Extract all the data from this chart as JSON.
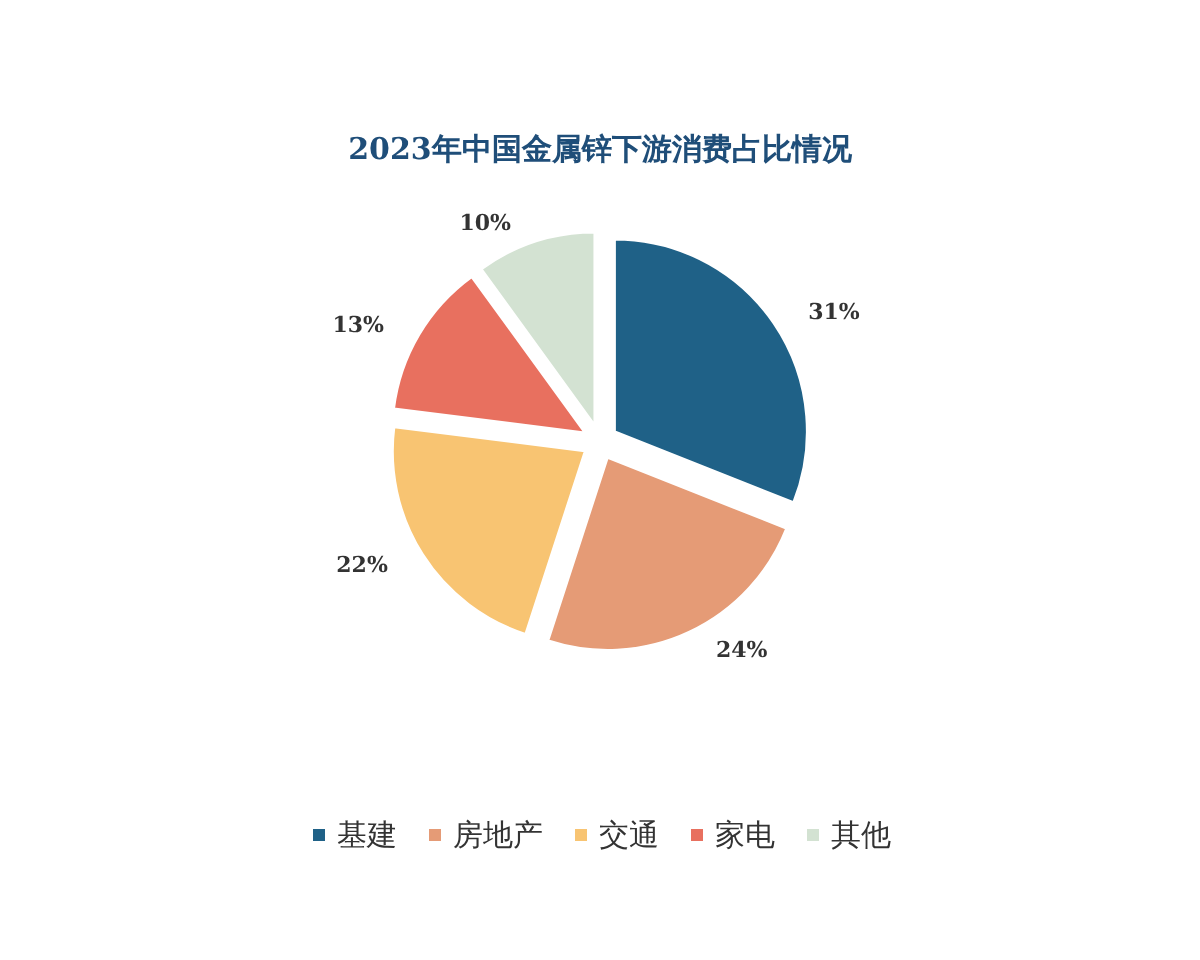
{
  "chart_data": {
    "type": "pie",
    "title": "2023年中国金属锌下游消费占比情况",
    "categories": [
      "基建",
      "房地产",
      "交通",
      "家电",
      "其他"
    ],
    "values": [
      31,
      24,
      22,
      13,
      10
    ],
    "value_labels": [
      "31%",
      "24%",
      "22%",
      "13%",
      "10%"
    ],
    "colors": [
      "#1f6187",
      "#e59b76",
      "#f8c472",
      "#e8705f",
      "#d3e2d2"
    ],
    "legend": "bottom"
  }
}
